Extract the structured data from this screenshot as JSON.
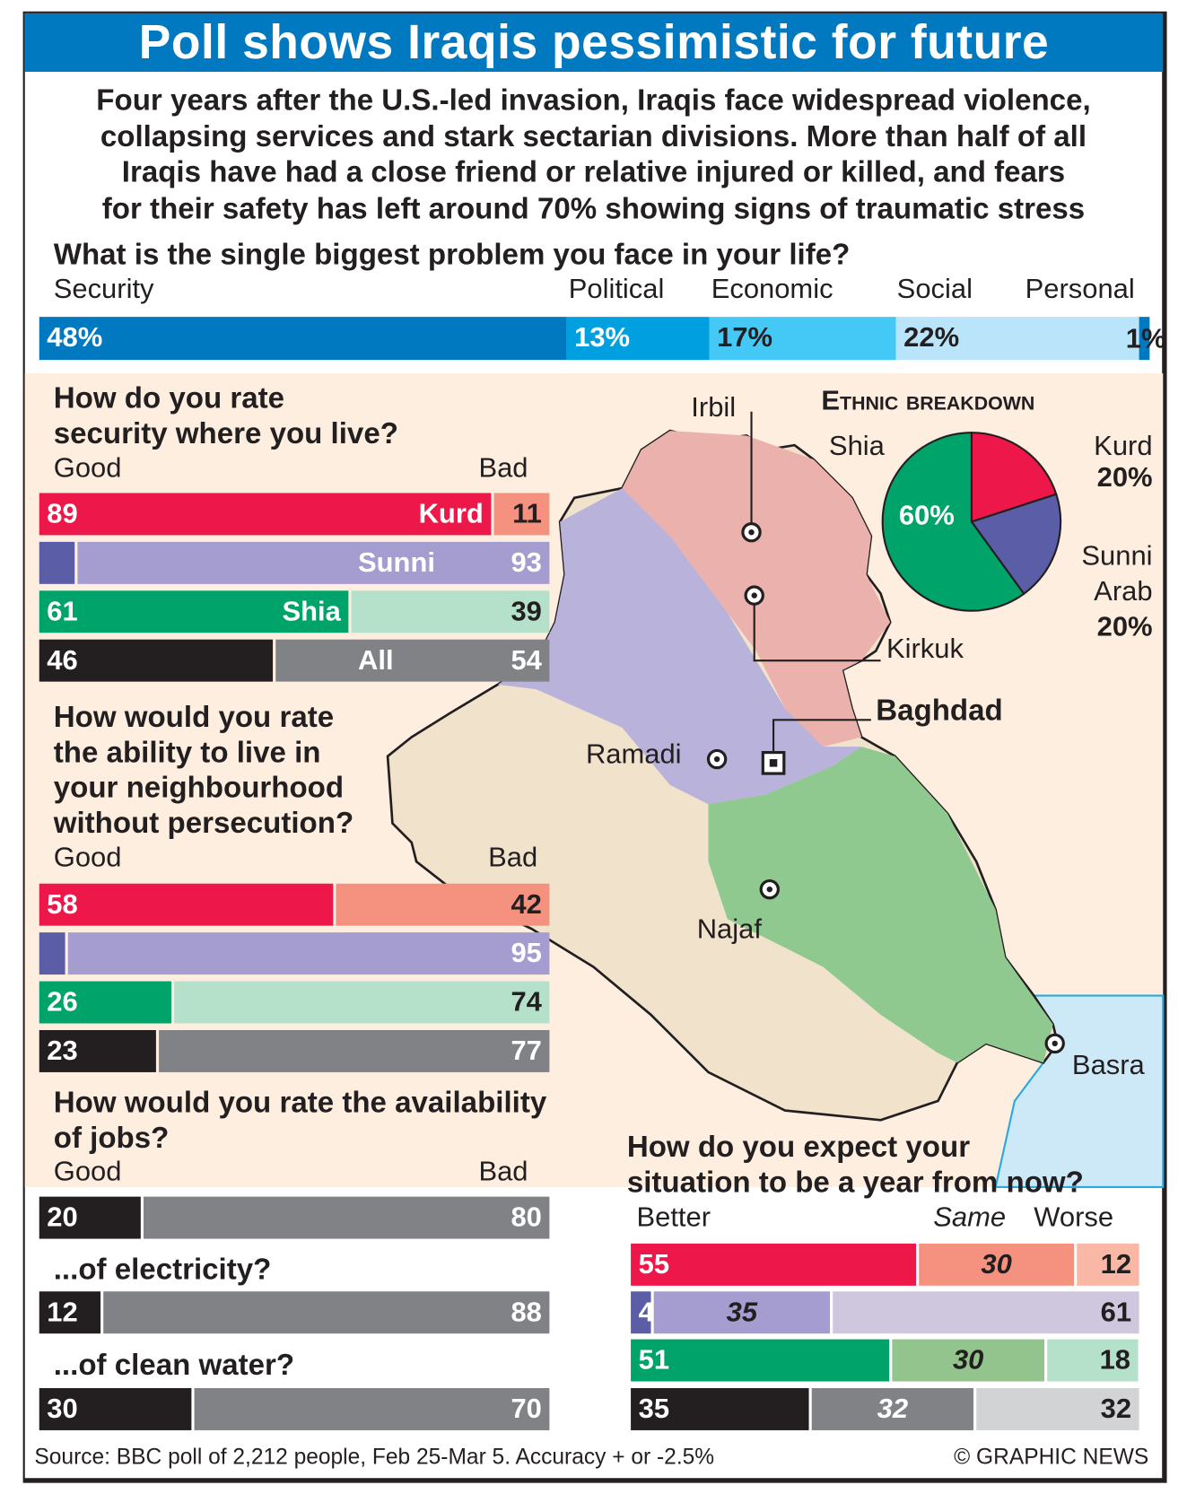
{
  "title": "Poll shows Iraqis pessimistic for future",
  "intro": [
    "Four years after the U.S.-led invasion, Iraqis face widespread violence,",
    "collapsing services and stark sectarian divisions. More than half of all",
    "Iraqis have had a close friend or relative injured or killed, and fears",
    "for their safety has left around 70% showing signs of traumatic stress"
  ],
  "chart_data": [
    {
      "type": "bar",
      "title": "What is the single biggest problem you face in your life?",
      "categories": [
        "Security",
        "Political",
        "Economic",
        "Social",
        "Personal"
      ],
      "values": [
        48,
        13,
        17,
        22,
        1
      ],
      "value_labels": [
        "48%",
        "13%",
        "17%",
        "22%",
        "1%"
      ]
    },
    {
      "type": "bar",
      "title": "How do you rate security where you live?",
      "left_label": "Good",
      "right_label": "Bad",
      "categories": [
        "Kurd",
        "Sunni",
        "Shia",
        "All"
      ],
      "series": [
        {
          "name": "Good",
          "values": [
            89,
            7,
            61,
            46
          ]
        },
        {
          "name": "Bad",
          "values": [
            11,
            93,
            39,
            54
          ]
        }
      ]
    },
    {
      "type": "bar",
      "title": "How would you rate the ability to live in your neighbourhood without persecution?",
      "left_label": "Good",
      "right_label": "Bad",
      "categories": [
        "Kurd",
        "Sunni",
        "Shia",
        "All"
      ],
      "series": [
        {
          "name": "Good",
          "values": [
            58,
            5,
            26,
            23
          ]
        },
        {
          "name": "Bad",
          "values": [
            42,
            95,
            74,
            77
          ]
        }
      ]
    },
    {
      "type": "bar",
      "title": "How would you rate the availability of jobs?",
      "left_label": "Good",
      "right_label": "Bad",
      "categories": [
        "jobs",
        "...of electricity?",
        "...of clean water?"
      ],
      "series": [
        {
          "name": "Good",
          "values": [
            20,
            12,
            30
          ]
        },
        {
          "name": "Bad",
          "values": [
            80,
            88,
            70
          ]
        }
      ]
    },
    {
      "type": "bar",
      "title": "How do you expect your situation to be a year from now?",
      "labels": [
        "Better",
        "Same",
        "Worse"
      ],
      "categories": [
        "Kurd",
        "Sunni",
        "Shia",
        "All"
      ],
      "series": [
        {
          "name": "Better",
          "values": [
            55,
            4,
            51,
            35
          ]
        },
        {
          "name": "Same",
          "values": [
            30,
            35,
            30,
            32
          ]
        },
        {
          "name": "Worse",
          "values": [
            12,
            61,
            18,
            32
          ]
        }
      ]
    },
    {
      "type": "pie",
      "title": "ETHNIC BREAKDOWN",
      "categories": [
        "Shia",
        "Kurd",
        "Sunni Arab"
      ],
      "values": [
        60,
        20,
        20
      ],
      "value_labels": [
        "60%",
        "20%",
        "20%"
      ]
    }
  ],
  "q4_sub": [
    "...of electricity?",
    "...of clean water?"
  ],
  "q4_lines": [
    "How would you rate the availability",
    "of jobs?"
  ],
  "q2_lines": [
    "How do you rate",
    "security where you live?"
  ],
  "q3_lines": [
    "How would you rate",
    "the ability to live in",
    "your neighbourhood",
    "without persecution?"
  ],
  "q5_lines": [
    "How do you expect your",
    "situation to be a year from now?"
  ],
  "pie_labels": {
    "title": "Ethnic breakdown",
    "shia": "Shia",
    "kurd": "Kurd",
    "kurd_pct": "20%",
    "sunni1": "Sunni",
    "sunni2": "Arab",
    "sunni_pct": "20%",
    "shia_pct": "60%"
  },
  "cities": {
    "irbil": "Irbil",
    "kirkuk": "Kirkuk",
    "baghdad": "Baghdad",
    "ramadi": "Ramadi",
    "najaf": "Najaf",
    "basra": "Basra"
  },
  "source": "Source: BBC poll of 2,212 people, Feb 25-Mar 5. Accuracy + or -2.5%",
  "credit": "© GRAPHIC NEWS",
  "colors": {
    "blue": "#0079c1",
    "kurd": "#ed1849",
    "kurd_light": "#f4927f",
    "sunni": "#5b5ea6",
    "sunni_light": "#a59dd0",
    "shia": "#00a46b",
    "shia_light": "#b5e0ca",
    "all": "#231f20",
    "all_light": "#818285"
  }
}
